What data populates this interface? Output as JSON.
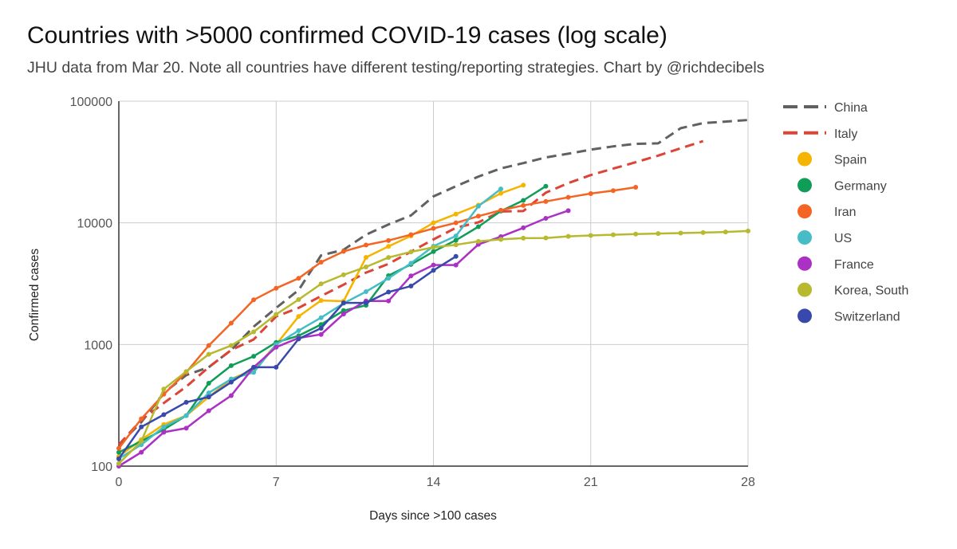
{
  "chart_data": {
    "type": "line",
    "title": "Countries with >5000 confirmed COVID-19 cases (log scale)",
    "subtitle": "JHU data from Mar 20. Note all countries have different testing/reporting strategies. Chart by @richdecibels",
    "xlabel": "Days since >100 cases",
    "ylabel": "Confirmed cases",
    "xlim": [
      0,
      28
    ],
    "ylim": [
      100,
      100000
    ],
    "yscale": "log",
    "x_ticks": [
      0,
      7,
      14,
      21,
      28
    ],
    "y_ticks": [
      100,
      1000,
      10000,
      100000
    ],
    "x_tick_labels": [
      "0",
      "7",
      "14",
      "21",
      "28"
    ],
    "y_tick_labels": [
      "100",
      "1000",
      "10000",
      "100000"
    ],
    "grid": true,
    "legend_position": "right",
    "series": [
      {
        "name": "China",
        "color": "#616161",
        "style": "dashed",
        "markers": false,
        "x": [
          0,
          1,
          2,
          3,
          4,
          5,
          6,
          7,
          8,
          9,
          10,
          11,
          12,
          13,
          14,
          15,
          16,
          17,
          18,
          19,
          20,
          21,
          22,
          23,
          24,
          25,
          26,
          27,
          28
        ],
        "values": [
          150,
          230,
          400,
          560,
          650,
          900,
          1400,
          2000,
          2800,
          5400,
          6000,
          8000,
          9700,
          11500,
          16500,
          20000,
          24000,
          28000,
          31000,
          34500,
          37000,
          40000,
          42500,
          44600,
          45000,
          60000,
          66000,
          68000,
          70000
        ]
      },
      {
        "name": "Italy",
        "color": "#db4437",
        "style": "dashed",
        "markers": false,
        "x": [
          0,
          1,
          2,
          3,
          4,
          5,
          6,
          7,
          8,
          9,
          10,
          11,
          12,
          13,
          14,
          15,
          16,
          17,
          18,
          19,
          20,
          21,
          22,
          23,
          24,
          25,
          26
        ],
        "values": [
          150,
          240,
          330,
          450,
          650,
          900,
          1100,
          1700,
          2000,
          2500,
          3100,
          3900,
          4600,
          5800,
          7300,
          9100,
          10100,
          12400,
          12500,
          17700,
          21200,
          24700,
          27900,
          31500,
          35700,
          41000,
          47000
        ]
      },
      {
        "name": "Spain",
        "color": "#f4b400",
        "style": "solid",
        "markers": true,
        "x": [
          0,
          1,
          2,
          3,
          4,
          5,
          6,
          7,
          8,
          9,
          10,
          11,
          12,
          13,
          14,
          15,
          16,
          17,
          18
        ],
        "values": [
          120,
          165,
          220,
          260,
          370,
          520,
          620,
          1000,
          1700,
          2300,
          2270,
          5200,
          6400,
          7800,
          10000,
          11800,
          14000,
          17500,
          20400
        ]
      },
      {
        "name": "Germany",
        "color": "#0f9d58",
        "style": "solid",
        "markers": true,
        "x": [
          0,
          1,
          2,
          3,
          4,
          5,
          6,
          7,
          8,
          9,
          10,
          11,
          12,
          13,
          14,
          15,
          16,
          17,
          18,
          19
        ],
        "values": [
          130,
          160,
          200,
          260,
          480,
          670,
          800,
          1040,
          1180,
          1460,
          1900,
          2100,
          3680,
          4550,
          5800,
          7200,
          9300,
          12500,
          15300,
          20000
        ]
      },
      {
        "name": "Iran",
        "color": "#f46524",
        "style": "solid",
        "markers": true,
        "x": [
          0,
          1,
          2,
          3,
          4,
          5,
          6,
          7,
          8,
          9,
          10,
          11,
          12,
          13,
          14,
          15,
          16,
          17,
          18,
          19,
          20,
          21,
          22,
          23
        ],
        "values": [
          140,
          245,
          390,
          590,
          980,
          1500,
          2330,
          2900,
          3500,
          4750,
          5820,
          6570,
          7160,
          8000,
          9000,
          10000,
          11350,
          12700,
          13900,
          14990,
          16200,
          17400,
          18400,
          19600
        ]
      },
      {
        "name": "US",
        "color": "#46bdc6",
        "style": "solid",
        "markers": true,
        "x": [
          0,
          1,
          2,
          3,
          4,
          5,
          6,
          7,
          8,
          9,
          10,
          11,
          12,
          13,
          14,
          15,
          16,
          17
        ],
        "values": [
          115,
          150,
          210,
          260,
          400,
          520,
          590,
          1000,
          1300,
          1660,
          2180,
          2720,
          3500,
          4650,
          6420,
          7800,
          13700,
          19000
        ]
      },
      {
        "name": "France",
        "color": "#ab30c4",
        "style": "solid",
        "markers": true,
        "x": [
          0,
          1,
          2,
          3,
          4,
          5,
          6,
          7,
          8,
          9,
          10,
          11,
          12,
          13,
          14,
          15,
          16,
          17,
          18,
          19,
          20
        ],
        "values": [
          100,
          130,
          190,
          205,
          285,
          380,
          650,
          950,
          1130,
          1210,
          1780,
          2280,
          2280,
          3660,
          4500,
          4500,
          6650,
          7700,
          9100,
          10900,
          12600
        ]
      },
      {
        "name": "Korea, South",
        "color": "#b7b92f",
        "style": "solid",
        "markers": true,
        "x": [
          0,
          1,
          2,
          3,
          4,
          5,
          6,
          7,
          8,
          9,
          10,
          11,
          12,
          13,
          14,
          15,
          16,
          17,
          18,
          19,
          20,
          21,
          22,
          23,
          24,
          25,
          26,
          27,
          28
        ],
        "values": [
          105,
          160,
          430,
          600,
          830,
          980,
          1270,
          1770,
          2340,
          3150,
          3740,
          4340,
          5190,
          5770,
          6300,
          6600,
          7040,
          7310,
          7480,
          7510,
          7750,
          7870,
          7980,
          8090,
          8160,
          8240,
          8320,
          8410,
          8570
        ]
      },
      {
        "name": "Switzerland",
        "color": "#3949ab",
        "style": "solid",
        "markers": true,
        "x": [
          0,
          1,
          2,
          3,
          4,
          5,
          6,
          7,
          8,
          9,
          10,
          11,
          12,
          13,
          14,
          15
        ],
        "values": [
          115,
          210,
          265,
          335,
          370,
          490,
          650,
          650,
          1110,
          1360,
          2200,
          2200,
          2700,
          3020,
          4070,
          5300
        ]
      }
    ]
  }
}
